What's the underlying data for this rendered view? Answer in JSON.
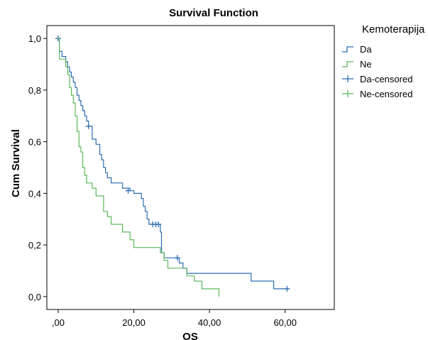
{
  "chart_data": {
    "type": "line",
    "step": true,
    "title": "Survival Function",
    "xlabel": "OS",
    "ylabel": "Cum Survival",
    "xlim": [
      -3,
      73
    ],
    "ylim": [
      -0.05,
      1.05
    ],
    "xticks": [
      0,
      20,
      40,
      60
    ],
    "xtick_labels": [
      ",00",
      "20,00",
      "40,00",
      "60,00"
    ],
    "yticks": [
      0.0,
      0.2,
      0.4,
      0.6,
      0.8,
      1.0
    ],
    "ytick_labels": [
      "0,0",
      "0,2",
      "0,4",
      "0,6",
      "0,8",
      "1,0"
    ],
    "legend_title": "Kemoterapija",
    "legend_position": "right",
    "grid": false,
    "series": [
      {
        "name": "Da",
        "color": "#2c6cb0",
        "steps": [
          [
            0,
            1.0
          ],
          [
            0.3,
            0.95
          ],
          [
            1.0,
            0.93
          ],
          [
            2.0,
            0.91
          ],
          [
            2.5,
            0.89
          ],
          [
            3.0,
            0.87
          ],
          [
            3.5,
            0.85
          ],
          [
            4.0,
            0.83
          ],
          [
            4.5,
            0.81
          ],
          [
            5.0,
            0.78
          ],
          [
            5.5,
            0.76
          ],
          [
            6.0,
            0.74
          ],
          [
            6.5,
            0.72
          ],
          [
            7.0,
            0.7
          ],
          [
            7.5,
            0.68
          ],
          [
            8.0,
            0.66
          ],
          [
            9.0,
            0.61
          ],
          [
            10.0,
            0.59
          ],
          [
            11.0,
            0.55
          ],
          [
            11.5,
            0.53
          ],
          [
            12.0,
            0.5
          ],
          [
            12.5,
            0.48
          ],
          [
            13.0,
            0.46
          ],
          [
            14.0,
            0.44
          ],
          [
            17.0,
            0.42
          ],
          [
            19.0,
            0.41
          ],
          [
            20.0,
            0.4
          ],
          [
            22.0,
            0.38
          ],
          [
            22.5,
            0.35
          ],
          [
            23.0,
            0.33
          ],
          [
            23.5,
            0.3
          ],
          [
            24.0,
            0.28
          ],
          [
            27.0,
            0.25
          ],
          [
            27.3,
            0.17
          ],
          [
            28.0,
            0.15
          ],
          [
            32.0,
            0.13
          ],
          [
            33.0,
            0.11
          ],
          [
            34.0,
            0.09
          ],
          [
            51.0,
            0.06
          ],
          [
            57.0,
            0.03
          ],
          [
            61.0,
            0.03
          ]
        ],
        "censored": [
          [
            0,
            1.0
          ],
          [
            8.0,
            0.66
          ],
          [
            18.5,
            0.41
          ],
          [
            25.0,
            0.28
          ],
          [
            25.8,
            0.28
          ],
          [
            26.5,
            0.28
          ],
          [
            31.5,
            0.15
          ],
          [
            60.5,
            0.03
          ]
        ]
      },
      {
        "name": "Ne",
        "color": "#5db85a",
        "steps": [
          [
            0,
            1.0
          ],
          [
            0.3,
            0.92
          ],
          [
            2.0,
            0.89
          ],
          [
            2.5,
            0.86
          ],
          [
            3.0,
            0.81
          ],
          [
            3.5,
            0.78
          ],
          [
            4.0,
            0.75
          ],
          [
            4.5,
            0.7
          ],
          [
            5.0,
            0.64
          ],
          [
            5.5,
            0.58
          ],
          [
            6.0,
            0.56
          ],
          [
            6.5,
            0.5
          ],
          [
            7.0,
            0.47
          ],
          [
            7.5,
            0.44
          ],
          [
            9.0,
            0.42
          ],
          [
            10.0,
            0.39
          ],
          [
            12.0,
            0.33
          ],
          [
            13.0,
            0.31
          ],
          [
            14.0,
            0.28
          ],
          [
            17.0,
            0.25
          ],
          [
            19.0,
            0.22
          ],
          [
            20.0,
            0.19
          ],
          [
            27.0,
            0.17
          ],
          [
            28.0,
            0.14
          ],
          [
            29.0,
            0.11
          ],
          [
            34.0,
            0.08
          ],
          [
            36.0,
            0.06
          ],
          [
            38.0,
            0.03
          ],
          [
            42.5,
            0.0
          ]
        ],
        "censored": []
      }
    ],
    "legend_entries": [
      "Da",
      "Ne",
      "Da-censored",
      "Ne-censored"
    ]
  }
}
